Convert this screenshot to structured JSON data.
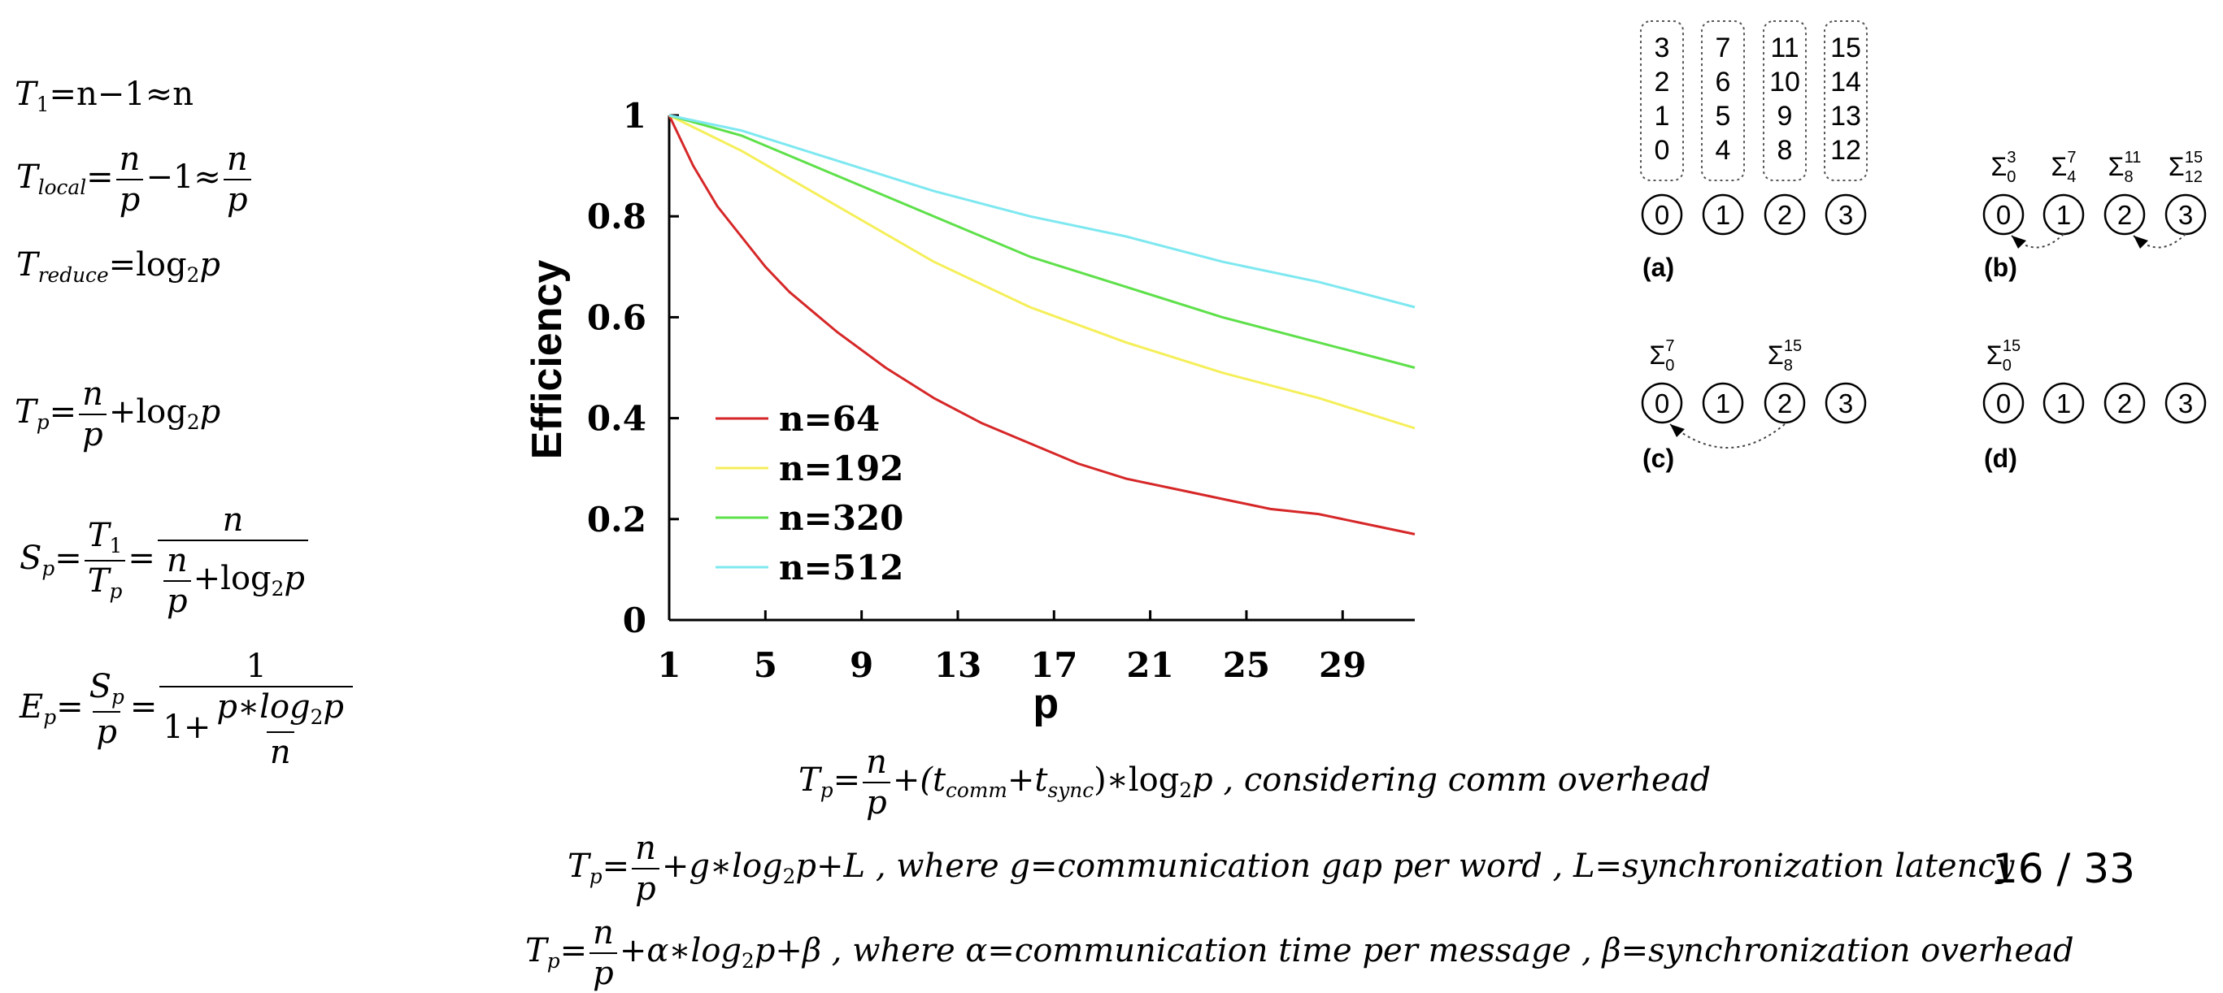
{
  "left_formulas": {
    "t1": {
      "lhs": "T",
      "sub": "1",
      "rhs": "=n−1≈n"
    },
    "tlocal": {
      "lhs": "T",
      "sub": "local",
      "frac_num": "n",
      "frac_den": "p",
      "mid": "−1≈",
      "frac2_num": "n",
      "frac2_den": "p"
    },
    "treduce": {
      "lhs": "T",
      "sub": "reduce",
      "rhs": "=log",
      "log_sub": "2",
      "tail": "p"
    },
    "tp": {
      "lhs": "T",
      "sub": "p",
      "frac_num": "n",
      "frac_den": "p",
      "tail": "+log",
      "log_sub": "2",
      "tail2": "p"
    },
    "sp": {
      "lhs": "S",
      "sub": "p",
      "f1_num": "T",
      "f1_num_sub": "1",
      "f1_den": "T",
      "f1_den_sub": "p",
      "f2_num": "n",
      "f2_den_frac_num": "n",
      "f2_den_frac_den": "p",
      "f2_den_tail": "+log",
      "f2_den_log_sub": "2",
      "f2_den_tail2": "p"
    },
    "ep": {
      "lhs": "E",
      "sub": "p",
      "f1_num": "S",
      "f1_num_sub": "p",
      "f1_den": "p",
      "f2_num": "1",
      "f2_den_head": "1+",
      "f2_den_frac_num": "p∗log",
      "f2_den_frac_num_sub": "2",
      "f2_den_frac_num_tail": "p",
      "f2_den_frac_den": "n"
    }
  },
  "bottom_formulas": {
    "comm": {
      "lhs": "T",
      "sub": "p",
      "frac_num": "n",
      "frac_den": "p",
      "part1": "+(t",
      "s1": "comm",
      "part2": "+t",
      "s2": "sync",
      "part3": ")∗log",
      "log_sub": "2",
      "tail": "p , considering comm overhead"
    },
    "bsp": {
      "lhs": "T",
      "sub": "p",
      "frac_num": "n",
      "frac_den": "p",
      "part1": "+g∗log",
      "log_sub": "2",
      "tail": "p+L , where g=communication gap per word , L=synchronization latency"
    },
    "alphabeta": {
      "lhs": "T",
      "sub": "p",
      "frac_num": "n",
      "frac_den": "p",
      "part1": "+α∗log",
      "log_sub": "2",
      "tail": "p+β , where α=communication time per message , β=synchronization overhead"
    }
  },
  "chart_data": {
    "type": "line",
    "title": "",
    "xlabel": "p",
    "ylabel": "Efficiency",
    "xlim": [
      1,
      32
    ],
    "ylim": [
      0,
      1
    ],
    "xticks": [
      1,
      5,
      9,
      13,
      17,
      21,
      25,
      29
    ],
    "yticks": [
      0,
      0.2,
      0.4,
      0.6,
      0.8,
      1
    ],
    "ytick_labels": [
      "0",
      "0.2",
      "0.4",
      "0.6",
      "0.8",
      "1"
    ],
    "legend_position": "bottom-left",
    "series": [
      {
        "name": "n=64",
        "color": "#d62728",
        "x": [
          1,
          2,
          3,
          4,
          5,
          6,
          7,
          8,
          10,
          12,
          14,
          16,
          18,
          20,
          22,
          24,
          26,
          28,
          30,
          32
        ],
        "values": [
          1.0,
          0.9,
          0.82,
          0.76,
          0.7,
          0.65,
          0.61,
          0.57,
          0.5,
          0.44,
          0.39,
          0.35,
          0.31,
          0.28,
          0.26,
          0.24,
          0.22,
          0.21,
          0.19,
          0.17
        ]
      },
      {
        "name": "n=192",
        "color": "#f5ef5a",
        "x": [
          1,
          4,
          8,
          12,
          16,
          20,
          24,
          28,
          32
        ],
        "values": [
          1.0,
          0.93,
          0.82,
          0.71,
          0.62,
          0.55,
          0.49,
          0.44,
          0.38
        ]
      },
      {
        "name": "n=320",
        "color": "#5ee04a",
        "x": [
          1,
          4,
          8,
          12,
          16,
          20,
          24,
          28,
          32
        ],
        "values": [
          1.0,
          0.96,
          0.88,
          0.8,
          0.72,
          0.66,
          0.6,
          0.55,
          0.5
        ]
      },
      {
        "name": "n=512",
        "color": "#7ee8f0",
        "x": [
          1,
          4,
          8,
          12,
          16,
          20,
          24,
          28,
          32
        ],
        "values": [
          1.0,
          0.97,
          0.91,
          0.85,
          0.8,
          0.76,
          0.71,
          0.67,
          0.62
        ]
      }
    ]
  },
  "diagram": {
    "columns": [
      [
        "3",
        "2",
        "1",
        "0"
      ],
      [
        "7",
        "6",
        "5",
        "4"
      ],
      [
        "11",
        "10",
        "9",
        "8"
      ],
      [
        "15",
        "14",
        "13",
        "12"
      ]
    ],
    "processes": [
      "0",
      "1",
      "2",
      "3"
    ],
    "panel_labels": [
      "(a)",
      "(b)",
      "(c)",
      "(d)"
    ],
    "sigma": "Σ",
    "sums_b": [
      {
        "lo": "0",
        "hi": "3"
      },
      {
        "lo": "4",
        "hi": "7"
      },
      {
        "lo": "8",
        "hi": "11"
      },
      {
        "lo": "12",
        "hi": "15"
      }
    ],
    "sums_c": [
      {
        "lo": "0",
        "hi": "7"
      },
      {
        "lo": "8",
        "hi": "15"
      }
    ],
    "sums_d": [
      {
        "lo": "0",
        "hi": "15"
      }
    ]
  },
  "slide_counter": "16 / 33"
}
